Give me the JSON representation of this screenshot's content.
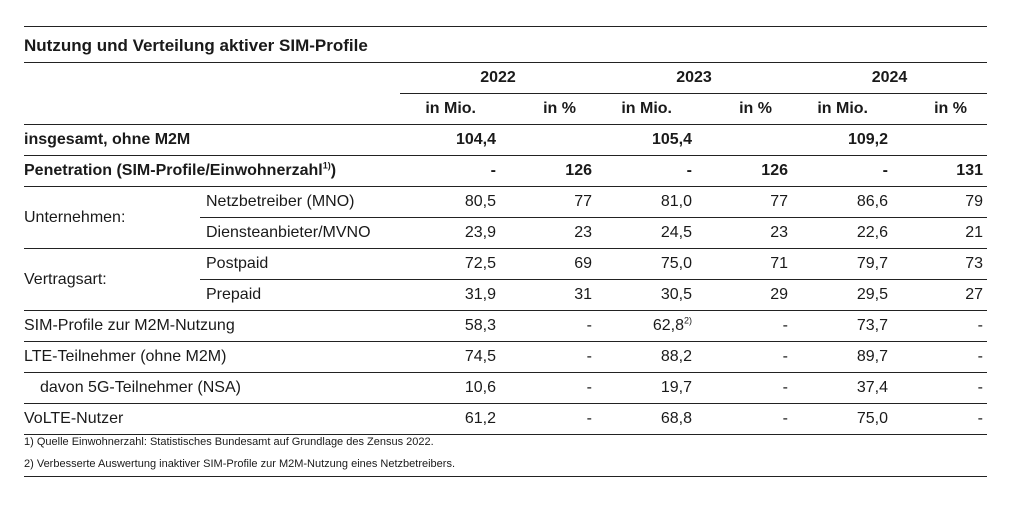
{
  "title": "Nutzung und Verteilung aktiver SIM-Profile",
  "years": [
    "2022",
    "2023",
    "2024"
  ],
  "unit_mio": "in Mio.",
  "unit_pct": "in %",
  "rows": {
    "total": {
      "label": "insgesamt, ohne M2M",
      "v": [
        "104,4",
        "",
        "105,4",
        "",
        "109,2",
        ""
      ]
    },
    "penetration": {
      "label": "Penetration (SIM-Profile/Einwohnerzahl",
      "sup": "1)",
      "label_end": ")",
      "v": [
        "-",
        "126",
        "-",
        "126",
        "-",
        "131"
      ]
    },
    "unternehmen": {
      "group": "Unternehmen:",
      "items": [
        {
          "label": "Netzbetreiber (MNO)",
          "v": [
            "80,5",
            "77",
            "81,0",
            "77",
            "86,6",
            "79"
          ]
        },
        {
          "label": "Diensteanbieter/MVNO",
          "v": [
            "23,9",
            "23",
            "24,5",
            "23",
            "22,6",
            "21"
          ]
        }
      ]
    },
    "vertragsart": {
      "group": "Vertragsart:",
      "items": [
        {
          "label": "Postpaid",
          "v": [
            "72,5",
            "69",
            "75,0",
            "71",
            "79,7",
            "73"
          ]
        },
        {
          "label": "Prepaid",
          "v": [
            "31,9",
            "31",
            "30,5",
            "29",
            "29,5",
            "27"
          ]
        }
      ]
    },
    "m2m": {
      "label": "SIM-Profile zur M2M-Nutzung",
      "v": [
        "58,3",
        "-",
        "62,8",
        "-",
        "73,7",
        "-"
      ],
      "v3_sup": "2)"
    },
    "lte": {
      "label": "LTE-Teilnehmer (ohne M2M)",
      "v": [
        "74,5",
        "-",
        "88,2",
        "-",
        "89,7",
        "-"
      ]
    },
    "fiveg": {
      "label": "davon 5G-Teilnehmer (NSA)",
      "v": [
        "10,6",
        "-",
        "19,7",
        "-",
        "37,4",
        "-"
      ]
    },
    "volte": {
      "label": "VoLTE-Nutzer",
      "v": [
        "61,2",
        "-",
        "68,8",
        "-",
        "75,0",
        "-"
      ]
    }
  },
  "footnotes": [
    "1) Quelle Einwohnerzahl: Statistisches Bundesamt auf Grundlage des Zensus 2022.",
    "2) Verbesserte Auswertung inaktiver SIM-Profile zur M2M-Nutzung eines Netzbetreibers."
  ]
}
